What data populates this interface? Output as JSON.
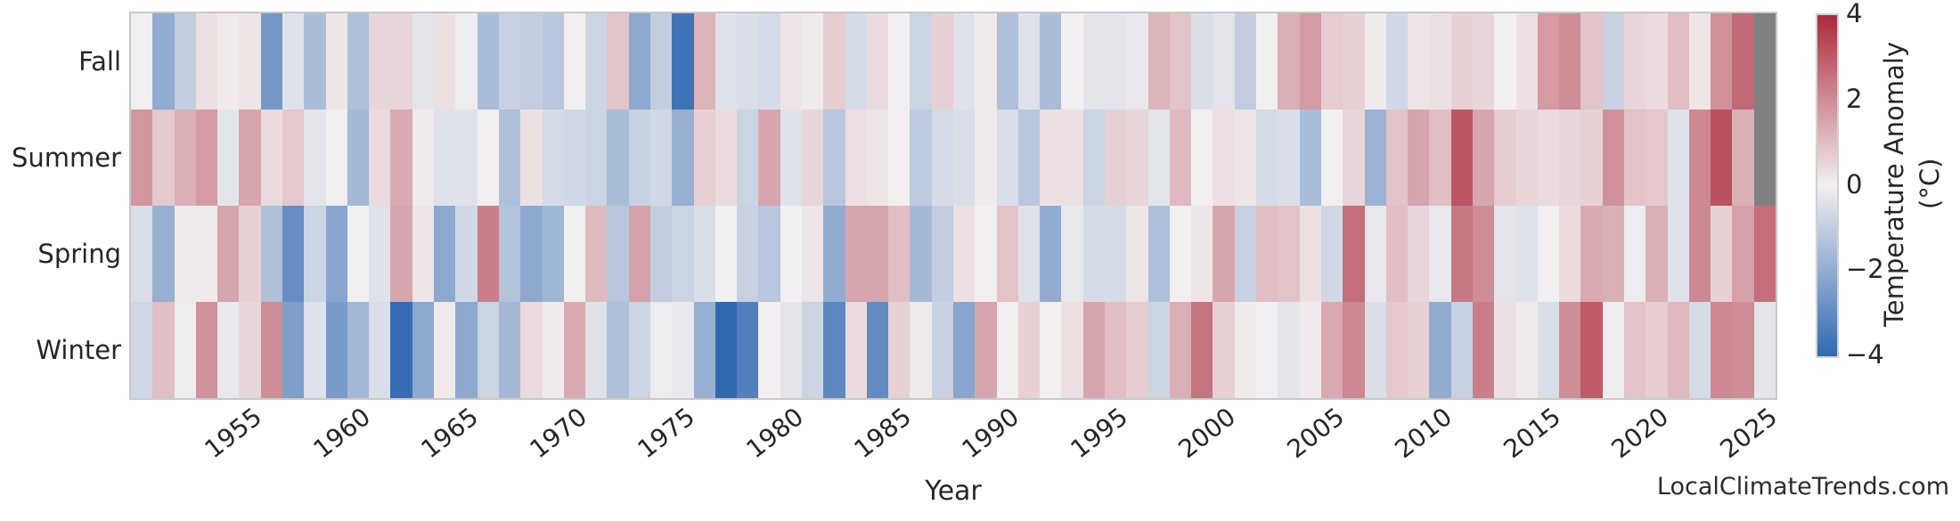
{
  "figure": {
    "xaxis_title": "Year",
    "watermark": "LocalClimateTrends.com",
    "background_color": "#ffffff",
    "frame_color": "#c9c9c9",
    "missing_data_color": "#808080",
    "text_color": "#262626"
  },
  "chart_data": {
    "type": "heatmap",
    "title": "",
    "xlabel": "Year",
    "ylabel": "",
    "rows": [
      "Fall",
      "Summer",
      "Spring",
      "Winter"
    ],
    "years": [
      1950,
      1951,
      1952,
      1953,
      1954,
      1955,
      1956,
      1957,
      1958,
      1959,
      1960,
      1961,
      1962,
      1963,
      1964,
      1965,
      1966,
      1967,
      1968,
      1969,
      1970,
      1971,
      1972,
      1973,
      1974,
      1975,
      1976,
      1977,
      1978,
      1979,
      1980,
      1981,
      1982,
      1983,
      1984,
      1985,
      1986,
      1987,
      1988,
      1989,
      1990,
      1991,
      1992,
      1993,
      1994,
      1995,
      1996,
      1997,
      1998,
      1999,
      2000,
      2001,
      2002,
      2003,
      2004,
      2005,
      2006,
      2007,
      2008,
      2009,
      2010,
      2011,
      2012,
      2013,
      2014,
      2015,
      2016,
      2017,
      2018,
      2019,
      2020,
      2021,
      2022,
      2023,
      2024,
      2025
    ],
    "x_tick_labels": [
      "1955",
      "1960",
      "1965",
      "1970",
      "1975",
      "1980",
      "1985",
      "1990",
      "1995",
      "2000",
      "2005",
      "2010",
      "2015",
      "2020",
      "2025"
    ],
    "x_tick_years": [
      1955,
      1960,
      1965,
      1970,
      1975,
      1980,
      1985,
      1990,
      1995,
      2000,
      2005,
      2010,
      2015,
      2020,
      2025
    ],
    "series": [
      {
        "name": "Fall",
        "values": [
          0.0,
          -2.0,
          -1.0,
          0.3,
          0.1,
          0.2,
          -2.6,
          -0.4,
          -1.5,
          0.2,
          -1.4,
          0.5,
          0.5,
          -0.3,
          0.3,
          -0.1,
          -1.5,
          -0.9,
          -1.0,
          -1.2,
          0.0,
          -0.8,
          0.9,
          -2.1,
          -1.0,
          -3.7,
          1.2,
          -0.4,
          -0.5,
          -0.6,
          0.2,
          0.1,
          0.7,
          -0.6,
          0.4,
          0.0,
          -0.8,
          0.6,
          -0.4,
          0.1,
          -1.4,
          -0.4,
          -1.5,
          0.0,
          -0.3,
          -0.3,
          -0.2,
          1.2,
          0.9,
          -0.5,
          -0.3,
          -1.0,
          0.0,
          1.3,
          1.7,
          0.7,
          0.6,
          0.1,
          -0.7,
          0.2,
          0.3,
          0.6,
          0.5,
          0.0,
          0.3,
          1.7,
          2.0,
          0.9,
          -0.9,
          0.5,
          0.4,
          1.0,
          0.2,
          1.9,
          2.7,
          null
        ]
      },
      {
        "name": "Summer",
        "values": [
          1.8,
          0.8,
          1.3,
          1.7,
          -0.3,
          1.5,
          0.4,
          0.8,
          -0.3,
          0.0,
          -1.6,
          0.4,
          1.4,
          0.1,
          -0.4,
          -0.4,
          0.0,
          -1.4,
          0.3,
          -0.6,
          -0.7,
          -0.8,
          -1.5,
          -0.9,
          -0.7,
          -1.9,
          0.6,
          0.4,
          -0.8,
          1.5,
          -0.4,
          0.5,
          -1.2,
          0.3,
          0.2,
          0.0,
          -1.1,
          -0.6,
          -0.5,
          0.1,
          -0.5,
          -1.2,
          0.3,
          0.3,
          -0.8,
          0.6,
          0.5,
          -0.3,
          1.1,
          0.0,
          0.3,
          0.2,
          -0.6,
          -0.5,
          -1.5,
          0.0,
          0.5,
          -1.8,
          0.9,
          1.5,
          1.0,
          3.1,
          1.5,
          0.7,
          0.5,
          0.4,
          0.5,
          0.6,
          1.9,
          0.9,
          0.8,
          -0.4,
          2.1,
          3.2,
          1.3,
          null
        ]
      },
      {
        "name": "Spring",
        "values": [
          -0.5,
          -1.9,
          0.1,
          0.1,
          1.5,
          0.6,
          -1.4,
          -2.9,
          -0.8,
          -2.2,
          0.0,
          -0.4,
          1.5,
          0.2,
          -2.1,
          -0.7,
          2.3,
          -1.3,
          -2.1,
          -1.7,
          0.0,
          1.1,
          -1.2,
          1.6,
          -1.0,
          -0.8,
          -0.5,
          0.0,
          -0.9,
          -1.2,
          0.0,
          0.2,
          -2.0,
          1.5,
          1.5,
          1.0,
          -1.6,
          -1.0,
          0.3,
          0.0,
          0.9,
          -0.4,
          -2.0,
          -0.2,
          -0.6,
          -0.6,
          0.2,
          -1.4,
          0.0,
          0.2,
          1.5,
          -0.9,
          1.0,
          0.9,
          0.3,
          -0.7,
          2.6,
          -0.2,
          1.0,
          0.5,
          -0.2,
          2.4,
          2.0,
          -0.3,
          -0.4,
          0.0,
          0.4,
          1.4,
          1.3,
          -0.1,
          1.3,
          -0.4,
          2.1,
          0.6,
          1.6,
          2.6
        ]
      },
      {
        "name": "Winter",
        "values": [
          -0.7,
          1.0,
          -0.1,
          1.9,
          -0.2,
          0.5,
          2.0,
          -2.4,
          -0.4,
          -2.5,
          -1.6,
          -0.5,
          -3.9,
          -2.1,
          0.1,
          -2.1,
          -0.8,
          -1.6,
          0.4,
          0.1,
          1.4,
          -0.4,
          -1.4,
          -0.8,
          -0.1,
          -0.2,
          -1.9,
          -4.0,
          -3.3,
          0.0,
          -0.3,
          -0.8,
          -3.1,
          0.4,
          -3.0,
          0.6,
          0.1,
          -0.9,
          -2.2,
          1.5,
          0.0,
          0.6,
          0.0,
          0.3,
          1.5,
          1.0,
          0.7,
          -0.8,
          1.3,
          2.5,
          0.6,
          0.1,
          0.0,
          -0.3,
          0.1,
          1.4,
          2.1,
          -0.5,
          0.8,
          0.6,
          -2.0,
          -0.9,
          2.3,
          0.3,
          0.1,
          -0.5,
          2.0,
          3.0,
          -0.1,
          0.9,
          0.7,
          1.1,
          -0.6,
          2.1,
          2.0,
          -0.3
        ]
      }
    ],
    "colorbar": {
      "label": "Temperature Anomaly (°C)",
      "tick_labels": [
        "4",
        "2",
        "0",
        "−2",
        "−4"
      ],
      "tick_values": [
        4,
        2,
        0,
        -2,
        -4
      ],
      "vmin": -4,
      "vmax": 4,
      "color_positive_max": "#ab2a3c",
      "color_zero": "#f2eff0",
      "color_negative_max": "#3169b1"
    },
    "legend_position": "right",
    "grid": false
  }
}
